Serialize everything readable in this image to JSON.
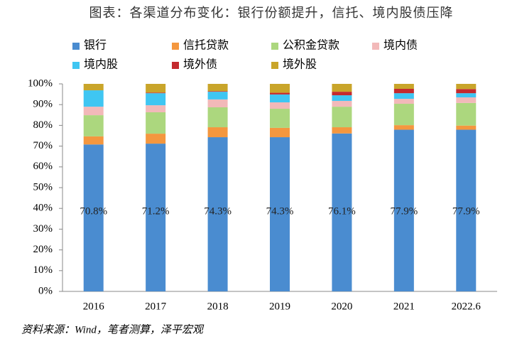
{
  "chart_data": {
    "type": "stacked_bar",
    "title": "图表：各渠道分布变化：银行份额提升，信托、境内股债压降",
    "categories": [
      "2016",
      "2017",
      "2018",
      "2019",
      "2020",
      "2021",
      "2022.6"
    ],
    "series": [
      {
        "name": "银行",
        "color": "#4a8cd0",
        "values": [
          70.8,
          71.2,
          74.3,
          74.3,
          76.1,
          77.9,
          77.9
        ],
        "value_labels": [
          "70.8%",
          "71.2%",
          "74.3%",
          "74.3%",
          "76.1%",
          "77.9%",
          "77.9%"
        ]
      },
      {
        "name": "信托贷款",
        "color": "#f4973f",
        "values": [
          3.9,
          4.8,
          4.8,
          4.5,
          3.0,
          2.2,
          2.0
        ]
      },
      {
        "name": "公积金贷款",
        "color": "#acd77e",
        "values": [
          10.2,
          10.3,
          9.6,
          9.2,
          9.9,
          10.3,
          10.9
        ]
      },
      {
        "name": "境内债",
        "color": "#f2b9b9",
        "values": [
          4.1,
          3.4,
          3.8,
          3.1,
          2.8,
          2.4,
          2.7
        ]
      },
      {
        "name": "境内股",
        "color": "#3fc6f2",
        "values": [
          7.9,
          5.8,
          3.7,
          3.8,
          2.7,
          2.7,
          2.0
        ]
      },
      {
        "name": "境外债",
        "color": "#c42a2e",
        "values": [
          0,
          0.3,
          0.3,
          0.8,
          1.7,
          2.1,
          2.0
        ]
      },
      {
        "name": "境外股",
        "color": "#c9a52a",
        "values": [
          3.1,
          4.2,
          3.5,
          4.3,
          3.8,
          2.4,
          2.5
        ]
      }
    ],
    "ylim": [
      0,
      100
    ],
    "yticks": [
      {
        "value": 0,
        "label": "0%"
      },
      {
        "value": 10,
        "label": "10%"
      },
      {
        "value": 20,
        "label": "20%"
      },
      {
        "value": 30,
        "label": "30%"
      },
      {
        "value": 40,
        "label": "40%"
      },
      {
        "value": 50,
        "label": "50%"
      },
      {
        "value": 60,
        "label": "60%"
      },
      {
        "value": 70,
        "label": "70%"
      },
      {
        "value": 80,
        "label": "80%"
      },
      {
        "value": 90,
        "label": "90%"
      },
      {
        "value": 100,
        "label": "100%"
      }
    ],
    "note": "资料来源：Wind，笔者测算，泽平宏观"
  }
}
